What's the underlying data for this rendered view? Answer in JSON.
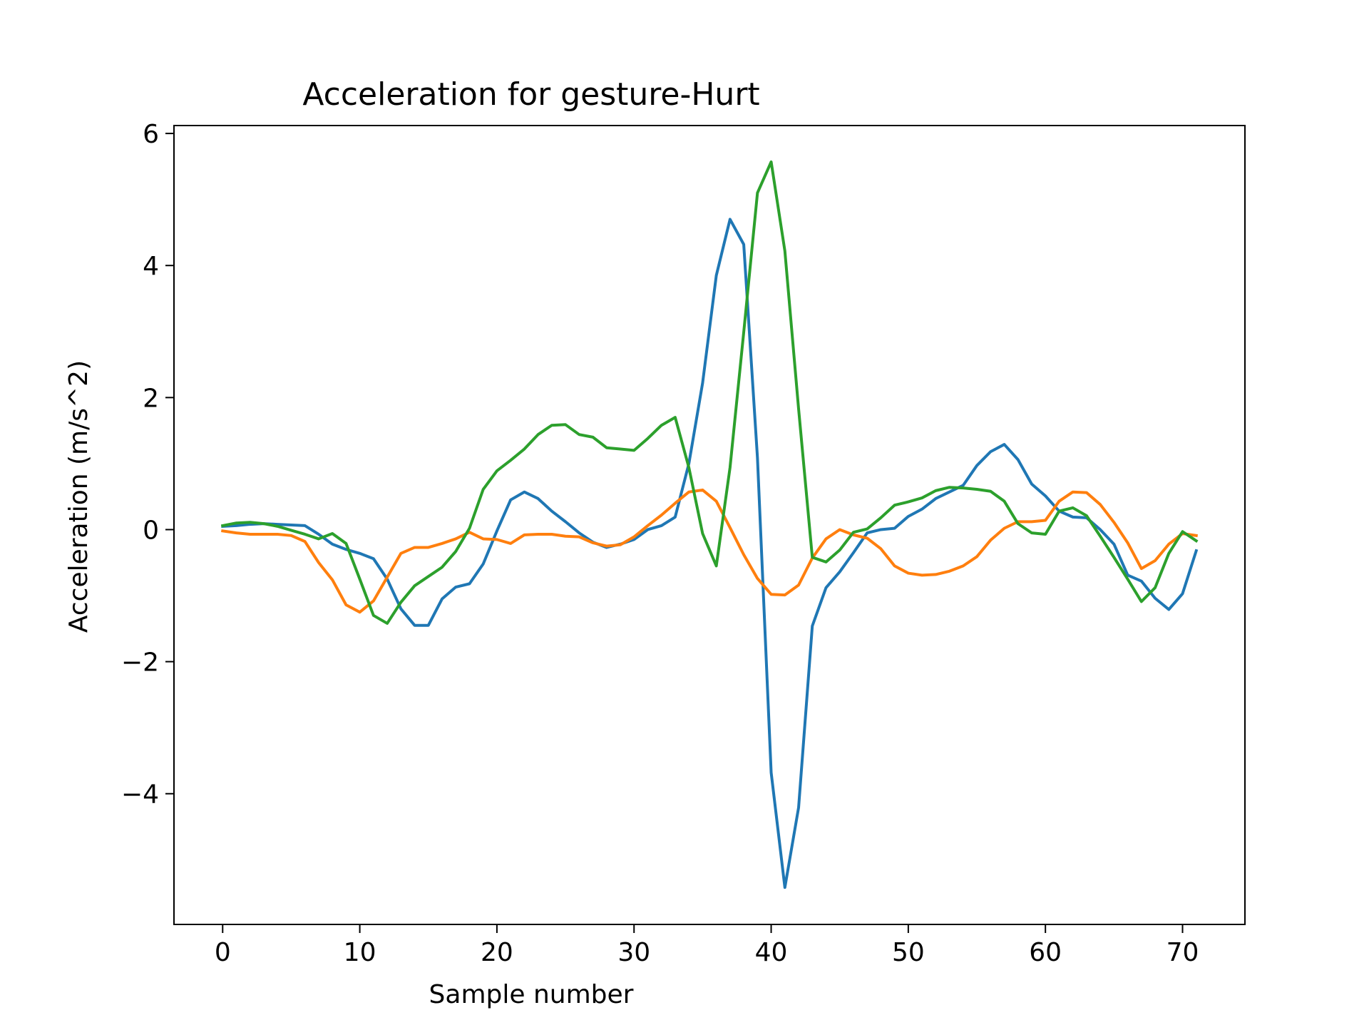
{
  "chart_data": {
    "type": "line",
    "title": "Acceleration for gesture-Hurt",
    "xlabel": "Sample number",
    "ylabel": "Acceleration (m/s^2)",
    "xlim": [
      -3.55,
      74.55
    ],
    "ylim": [
      -5.98,
      6.12
    ],
    "xticks": [
      0,
      10,
      20,
      30,
      40,
      50,
      60,
      70
    ],
    "xtick_labels": [
      "0",
      "10",
      "20",
      "30",
      "40",
      "50",
      "60",
      "70"
    ],
    "yticks": [
      -4,
      -2,
      0,
      2,
      4,
      6
    ],
    "ytick_labels": [
      "−4",
      "−2",
      "0",
      "2",
      "4",
      "6"
    ],
    "grid": false,
    "legend": "none",
    "x": [
      0,
      1,
      2,
      3,
      4,
      5,
      6,
      7,
      8,
      9,
      10,
      11,
      12,
      13,
      14,
      15,
      16,
      17,
      18,
      19,
      20,
      21,
      22,
      23,
      24,
      25,
      26,
      27,
      28,
      29,
      30,
      31,
      32,
      33,
      34,
      35,
      36,
      37,
      38,
      39,
      40,
      41,
      42,
      43,
      44,
      45,
      46,
      47,
      48,
      49,
      50,
      51,
      52,
      53,
      54,
      55,
      56,
      57,
      58,
      59,
      60,
      61,
      62,
      63,
      64,
      65,
      66,
      67,
      68,
      69,
      70,
      71
    ],
    "series": [
      {
        "color": "#1f77b4",
        "values": [
          0.05,
          0.06,
          0.08,
          0.09,
          0.08,
          0.07,
          0.06,
          -0.07,
          -0.22,
          -0.3,
          -0.36,
          -0.44,
          -0.75,
          -1.2,
          -1.45,
          -1.45,
          -1.05,
          -0.87,
          -0.82,
          -0.52,
          -0.02,
          0.45,
          0.57,
          0.47,
          0.28,
          0.12,
          -0.05,
          -0.19,
          -0.27,
          -0.22,
          -0.15,
          0.0,
          0.06,
          0.19,
          1.0,
          2.22,
          3.85,
          4.7,
          4.32,
          1.09,
          -3.68,
          -5.42,
          -4.21,
          -1.46,
          -0.88,
          -0.64,
          -0.35,
          -0.05,
          0.0,
          0.02,
          0.2,
          0.31,
          0.47,
          0.57,
          0.67,
          0.97,
          1.18,
          1.29,
          1.06,
          0.69,
          0.51,
          0.28,
          0.19,
          0.18,
          0.0,
          -0.22,
          -0.69,
          -0.78,
          -1.04,
          -1.21,
          -0.97,
          -0.32
        ]
      },
      {
        "color": "#ff7f0e",
        "values": [
          -0.02,
          -0.05,
          -0.07,
          -0.07,
          -0.07,
          -0.09,
          -0.18,
          -0.5,
          -0.76,
          -1.14,
          -1.25,
          -1.08,
          -0.72,
          -0.36,
          -0.27,
          -0.27,
          -0.21,
          -0.14,
          -0.04,
          -0.14,
          -0.15,
          -0.21,
          -0.08,
          -0.07,
          -0.07,
          -0.1,
          -0.11,
          -0.2,
          -0.25,
          -0.23,
          -0.11,
          0.06,
          0.22,
          0.4,
          0.57,
          0.6,
          0.43,
          0.03,
          -0.38,
          -0.74,
          -0.98,
          -0.99,
          -0.84,
          -0.43,
          -0.14,
          0.0,
          -0.08,
          -0.13,
          -0.29,
          -0.55,
          -0.66,
          -0.69,
          -0.68,
          -0.63,
          -0.55,
          -0.41,
          -0.16,
          0.02,
          0.12,
          0.12,
          0.14,
          0.43,
          0.57,
          0.56,
          0.38,
          0.11,
          -0.2,
          -0.59,
          -0.47,
          -0.22,
          -0.06,
          -0.09
        ]
      },
      {
        "color": "#2ca02c",
        "values": [
          0.06,
          0.1,
          0.11,
          0.09,
          0.05,
          -0.01,
          -0.07,
          -0.14,
          -0.06,
          -0.21,
          -0.75,
          -1.3,
          -1.42,
          -1.1,
          -0.85,
          -0.71,
          -0.57,
          -0.33,
          0.02,
          0.61,
          0.89,
          1.05,
          1.22,
          1.44,
          1.58,
          1.59,
          1.44,
          1.4,
          1.24,
          1.22,
          1.2,
          1.38,
          1.58,
          1.7,
          0.94,
          -0.06,
          -0.55,
          0.94,
          2.99,
          5.1,
          5.57,
          4.22,
          1.83,
          -0.42,
          -0.49,
          -0.31,
          -0.04,
          0.01,
          0.18,
          0.37,
          0.42,
          0.48,
          0.59,
          0.64,
          0.63,
          0.61,
          0.58,
          0.43,
          0.09,
          -0.05,
          -0.07,
          0.28,
          0.33,
          0.21,
          -0.1,
          -0.42,
          -0.75,
          -1.09,
          -0.88,
          -0.36,
          -0.03,
          -0.17
        ]
      }
    ]
  }
}
